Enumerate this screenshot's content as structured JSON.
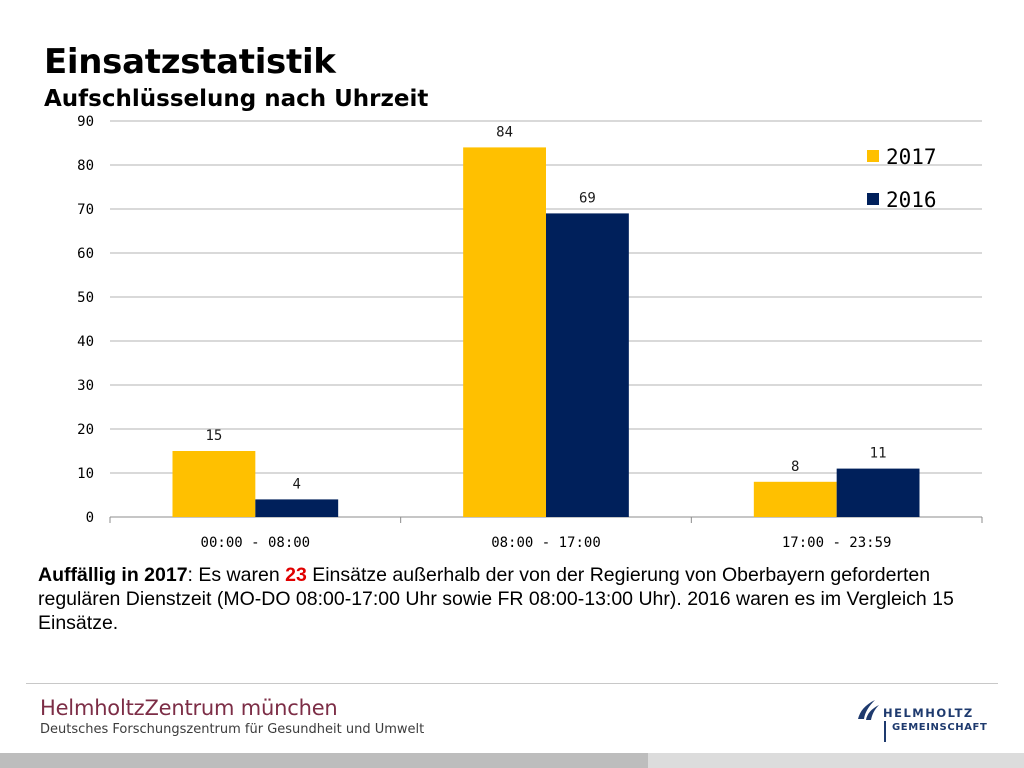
{
  "slide": {
    "title": "Einsatzstatistik",
    "subtitle": "Aufschlüsselung nach Uhrzeit"
  },
  "chart_data": {
    "type": "bar",
    "categories": [
      "00:00 - 08:00",
      "08:00 - 17:00",
      "17:00 - 23:59"
    ],
    "series": [
      {
        "name": "2017",
        "values": [
          15,
          84,
          8
        ],
        "color": "#FFC000"
      },
      {
        "name": "2016",
        "values": [
          4,
          69,
          11
        ],
        "color": "#00205B"
      }
    ],
    "ylim": [
      0,
      90
    ],
    "yticks": [
      0,
      10,
      20,
      30,
      40,
      50,
      60,
      70,
      80,
      90
    ],
    "grid": true,
    "legend": "top-right",
    "data_labels": true
  },
  "note": {
    "lead": "Auffällig in 2017",
    "text1": ": Es waren ",
    "highlight": "23",
    "text2": " Einsätze außerhalb der von der Regierung von Oberbayern geforderten regulären Dienstzeit (MO-DO 08:00-17:00 Uhr sowie FR 08:00-13:00 Uhr). 2016 waren es im Vergleich 15 Einsätze."
  },
  "footer": {
    "org_name": "HelmholtzZentrum münchen",
    "org_desc": "Deutsches Forschungszentrum für Gesundheit und Umwelt",
    "partner_line1": "HELMHOLTZ",
    "partner_line2": "GEMEINSCHAFT",
    "partner_color": "#1E3A6E",
    "org_color": "#7C2D46"
  }
}
